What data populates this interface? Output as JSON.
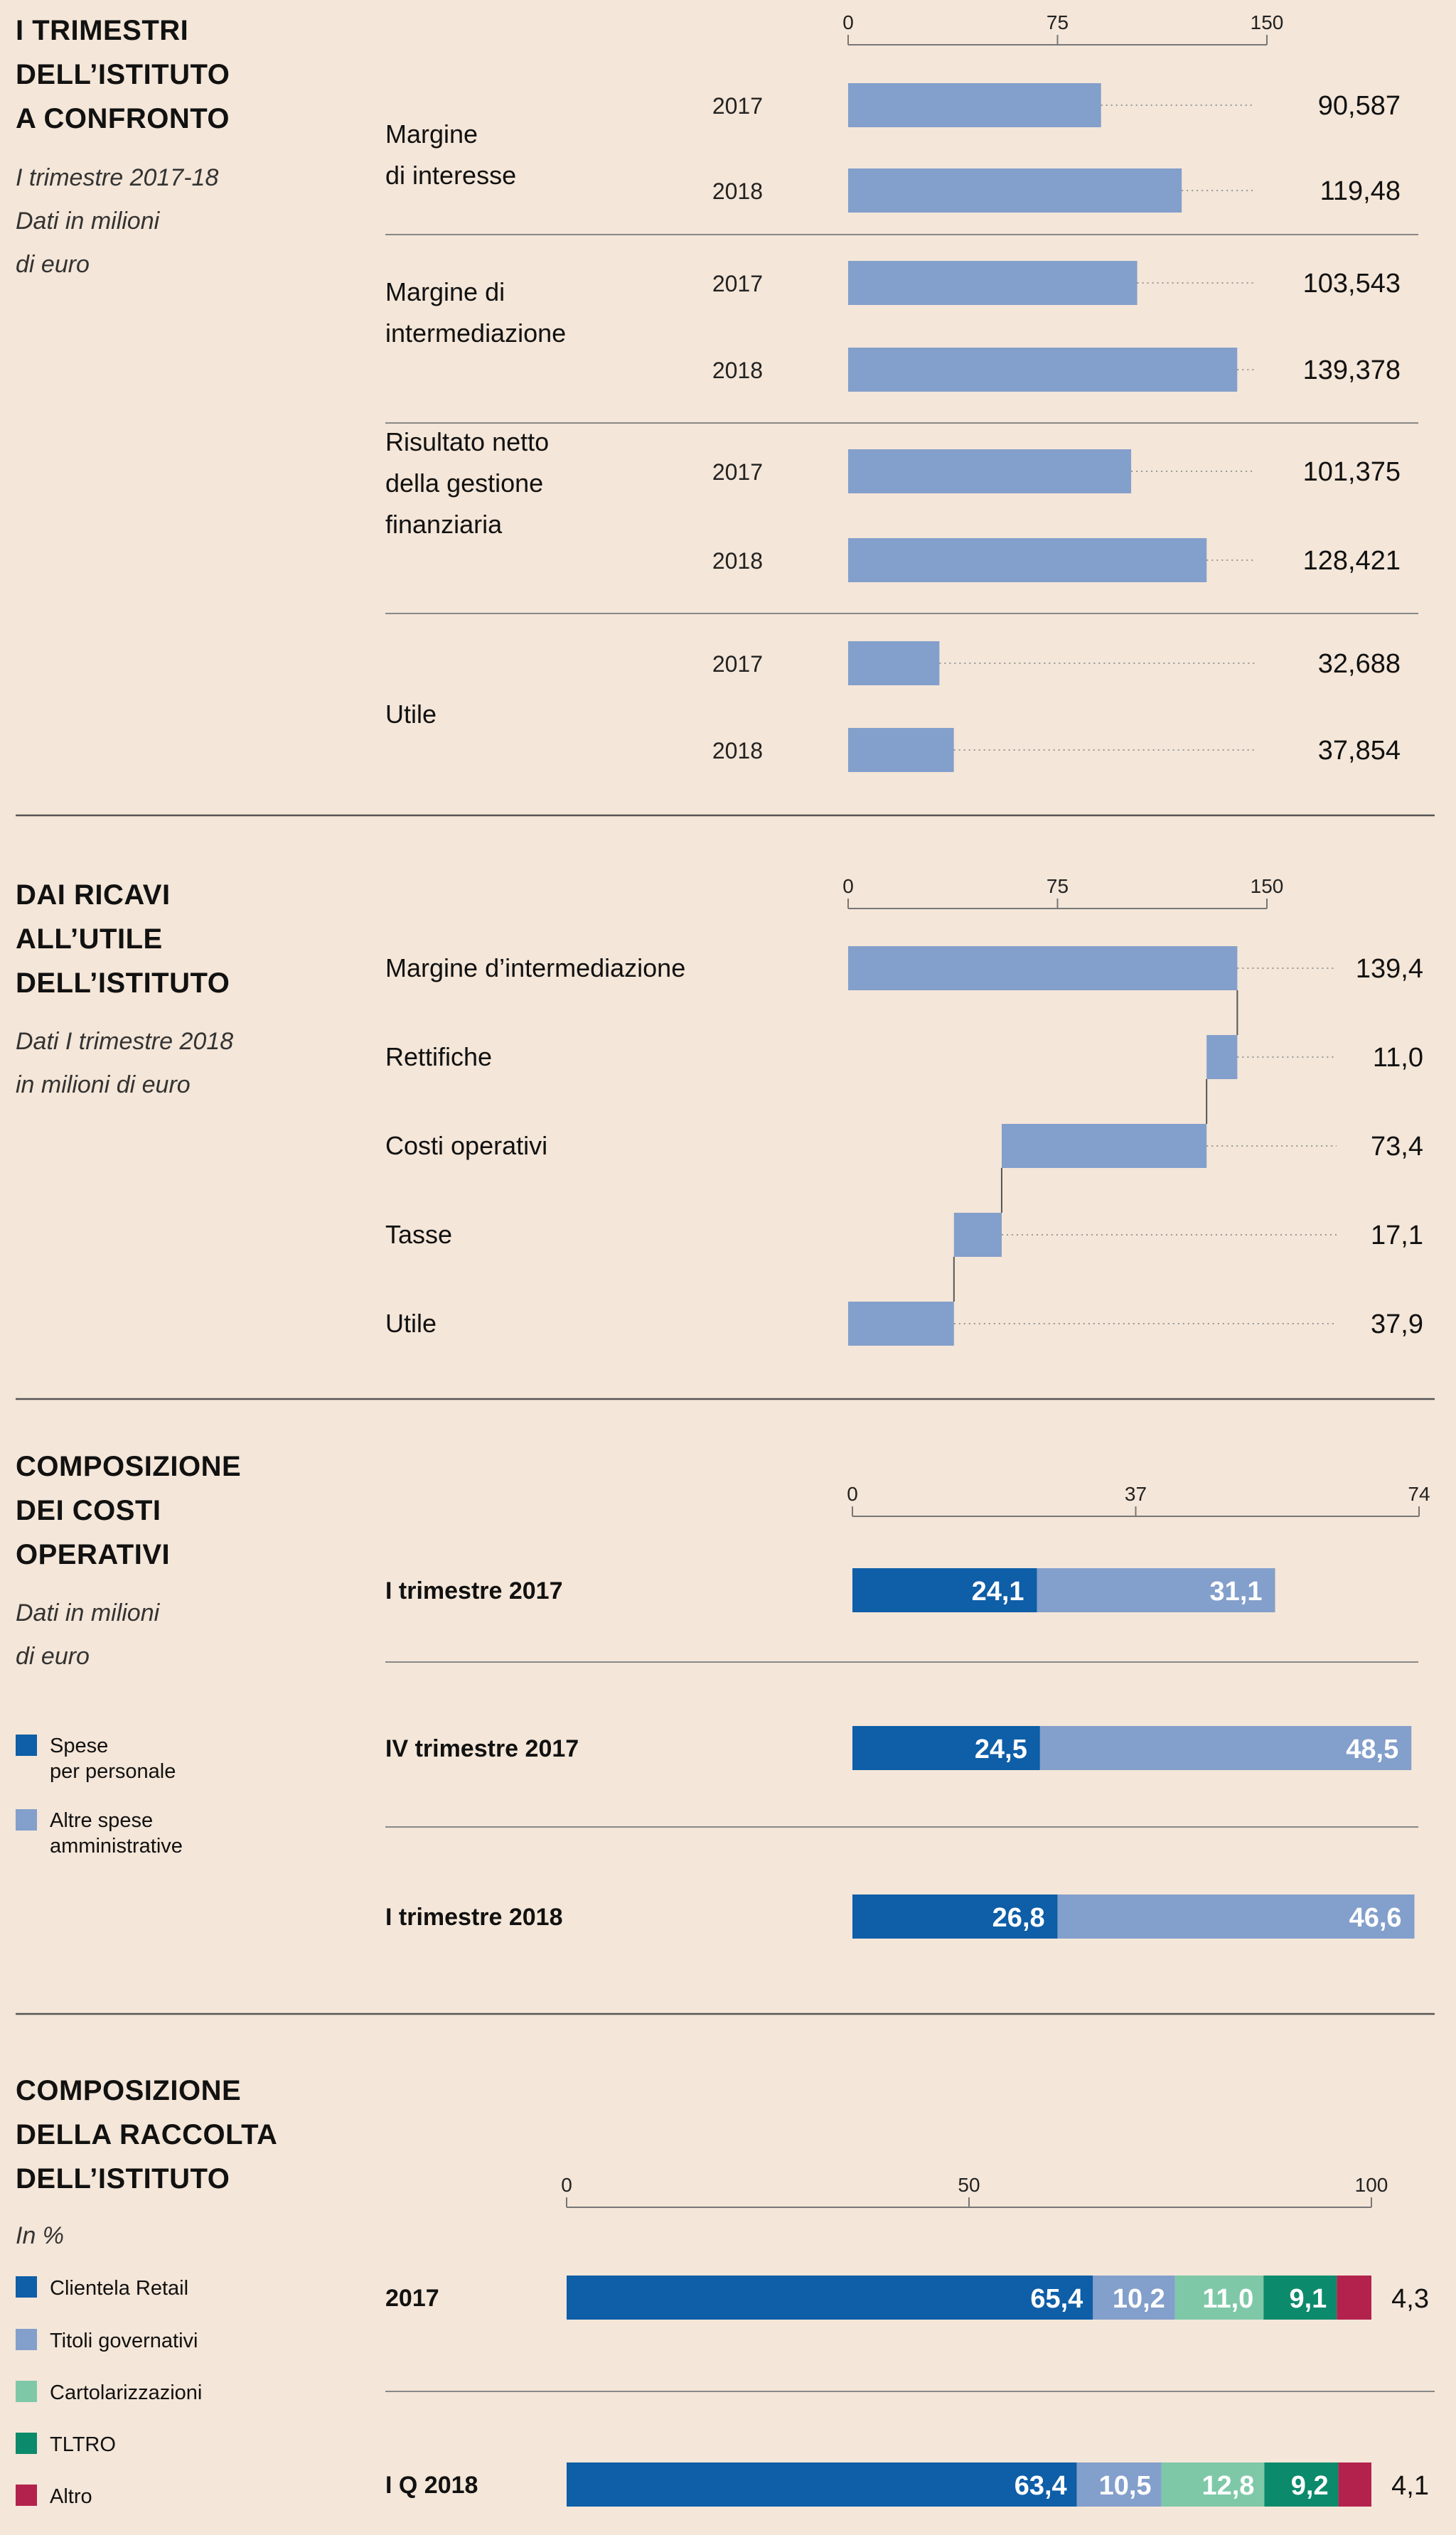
{
  "colors": {
    "background": "#f4e6d8",
    "light_blue": "#839fcb",
    "dark_blue": "#0e5ea8",
    "mint": "#7ec8a8",
    "teal": "#0c8a6c",
    "crimson": "#b3224d"
  },
  "chart_data": [
    {
      "type": "bar",
      "title": [
        "I TRIMESTRI",
        "DELL’ISTITUTO",
        "A CONFRONTO"
      ],
      "subtitle": [
        "I trimestre 2017-18",
        "Dati in milioni",
        "di euro"
      ],
      "xlim": [
        0,
        150
      ],
      "ticks": [
        "0",
        "75",
        "150"
      ],
      "tick_values": [
        0,
        75,
        150
      ],
      "groups": [
        {
          "label": [
            "Margine",
            "di interesse"
          ],
          "bars": [
            {
              "year": "2017",
              "value": 90.587,
              "label": "90,587"
            },
            {
              "year": "2018",
              "value": 119.48,
              "label": "119,48"
            }
          ]
        },
        {
          "label": [
            "Margine di",
            "intermediazione"
          ],
          "bars": [
            {
              "year": "2017",
              "value": 103.543,
              "label": "103,543"
            },
            {
              "year": "2018",
              "value": 139.378,
              "label": "139,378"
            }
          ]
        },
        {
          "label": [
            "Risultato netto",
            "della gestione",
            "finanziaria"
          ],
          "bars": [
            {
              "year": "2017",
              "value": 101.375,
              "label": "101,375"
            },
            {
              "year": "2018",
              "value": 128.421,
              "label": "128,421"
            }
          ]
        },
        {
          "label": [
            "Utile"
          ],
          "bars": [
            {
              "year": "2017",
              "value": 32.688,
              "label": "32,688"
            },
            {
              "year": "2018",
              "value": 37.854,
              "label": "37,854"
            }
          ]
        }
      ]
    },
    {
      "type": "waterfall",
      "title": [
        "DAI RICAVI",
        "ALL’UTILE",
        "DELL’ISTITUTO"
      ],
      "subtitle": [
        "Dati I trimestre 2018",
        "in milioni di euro"
      ],
      "xlim": [
        0,
        150
      ],
      "ticks": [
        "0",
        "75",
        "150"
      ],
      "tick_values": [
        0,
        75,
        150
      ],
      "steps": [
        {
          "label": "Margine d’intermediazione",
          "start": 0,
          "end": 139.4,
          "value_label": "139,4"
        },
        {
          "label": "Rettifiche",
          "start": 128.4,
          "end": 139.4,
          "value_label": "11,0"
        },
        {
          "label": "Costi operativi",
          "start": 55.0,
          "end": 128.4,
          "value_label": "73,4"
        },
        {
          "label": "Tasse",
          "start": 37.9,
          "end": 55.0,
          "value_label": "17,1"
        },
        {
          "label": "Utile",
          "start": 0,
          "end": 37.9,
          "value_label": "37,9"
        }
      ]
    },
    {
      "type": "stacked-bar",
      "title": [
        "COMPOSIZIONE",
        "DEI COSTI",
        "OPERATIVI"
      ],
      "subtitle": [
        "Dati in milioni",
        "di euro"
      ],
      "xlim": [
        0,
        74
      ],
      "ticks": [
        "0",
        "37",
        "74"
      ],
      "tick_values": [
        0,
        37,
        74
      ],
      "legend": [
        {
          "label": [
            "Spese",
            "per personale"
          ],
          "color": "#0e5ea8"
        },
        {
          "label": [
            "Altre spese",
            "amministrative"
          ],
          "color": "#839fcb"
        }
      ],
      "categories": [
        "I trimestre 2017",
        "IV trimestre 2017",
        "I trimestre 2018"
      ],
      "series": [
        {
          "name": "Spese per personale",
          "values": [
            24.1,
            24.5,
            26.8
          ],
          "labels": [
            "24,1",
            "24,5",
            "26,8"
          ],
          "color": "#0e5ea8"
        },
        {
          "name": "Altre spese amministrative",
          "values": [
            31.1,
            48.5,
            46.6
          ],
          "labels": [
            "31,1",
            "48,5",
            "46,6"
          ],
          "color": "#839fcb"
        }
      ]
    },
    {
      "type": "stacked-bar",
      "title": [
        "COMPOSIZIONE",
        "DELLA RACCOLTA",
        "DELL’ISTITUTO"
      ],
      "subtitle": [
        "In %"
      ],
      "xlim": [
        0,
        100
      ],
      "ticks": [
        "0",
        "50",
        "100"
      ],
      "tick_values": [
        0,
        50,
        100
      ],
      "legend": [
        {
          "label": [
            "Clientela Retail"
          ],
          "color": "#0e5ea8"
        },
        {
          "label": [
            "Titoli governativi"
          ],
          "color": "#839fcb"
        },
        {
          "label": [
            "Cartolarizzazioni"
          ],
          "color": "#7ec8a8"
        },
        {
          "label": [
            "TLTRO"
          ],
          "color": "#0c8a6c"
        },
        {
          "label": [
            "Altro"
          ],
          "color": "#b3224d"
        }
      ],
      "categories": [
        "2017",
        "I Q 2018"
      ],
      "series": [
        {
          "name": "Clientela Retail",
          "values": [
            65.4,
            63.4
          ],
          "labels": [
            "65,4",
            "63,4"
          ],
          "color": "#0e5ea8"
        },
        {
          "name": "Titoli governativi",
          "values": [
            10.2,
            10.5
          ],
          "labels": [
            "10,2",
            "10,5"
          ],
          "color": "#839fcb"
        },
        {
          "name": "Cartolarizzazioni",
          "values": [
            11.0,
            12.8
          ],
          "labels": [
            "11,0",
            "12,8"
          ],
          "color": "#7ec8a8"
        },
        {
          "name": "TLTRO",
          "values": [
            9.1,
            9.2
          ],
          "labels": [
            "9,1",
            "9,2"
          ],
          "color": "#0c8a6c"
        },
        {
          "name": "Altro",
          "values": [
            4.3,
            4.1
          ],
          "labels": [
            "4,3",
            "4,1"
          ],
          "color": "#b3224d",
          "outside_label": true
        }
      ]
    }
  ]
}
